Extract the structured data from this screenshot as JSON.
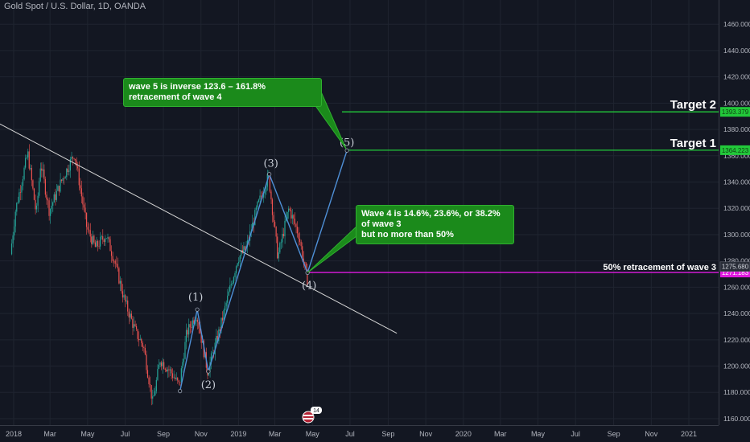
{
  "header": {
    "symbol_title": "Gold Spot / U.S. Dollar, 1D, OANDA"
  },
  "colors": {
    "background": "#131722",
    "grid": "#1f2430",
    "axis_text": "#b2b5be",
    "up_candle": "#26a69a",
    "down_candle": "#ef5350",
    "target_line": "#22c93a",
    "retracement_line": "#e01adf",
    "wave_line": "#4e8fd6",
    "trend_line": "#d6d6d6",
    "callout_bg": "#1b8a1b"
  },
  "callouts": {
    "wave5": "wave 5 is inverse 123.6 – 161.8% retracement of wave 4",
    "wave4": "Wave 4 is 14.6%, 23.6%, or 38.2% of wave 3\nbut no more than 50%"
  },
  "chart_data": {
    "type": "candlestick",
    "title": "Gold Spot / U.S. Dollar, 1D, OANDA",
    "ylim": [
      1145,
      1480
    ],
    "y_ticks": [
      1160,
      1180,
      1200,
      1220,
      1240,
      1260,
      1280,
      1300,
      1320,
      1340,
      1360,
      1380,
      1400,
      1420,
      1440,
      1460
    ],
    "x_tick_labels": [
      "2018",
      "Mar",
      "May",
      "Jul",
      "Sep",
      "Nov",
      "2019",
      "Mar",
      "May",
      "Jul",
      "Sep",
      "Nov",
      "2020",
      "Mar",
      "May",
      "Jul",
      "Sep",
      "Nov",
      "2021"
    ],
    "price_path": [
      [
        "2017-12-28",
        1285
      ],
      [
        "2018-01-05",
        1318
      ],
      [
        "2018-01-25",
        1362
      ],
      [
        "2018-02-08",
        1315
      ],
      [
        "2018-02-15",
        1355
      ],
      [
        "2018-03-01",
        1318
      ],
      [
        "2018-03-20",
        1340
      ],
      [
        "2018-04-11",
        1362
      ],
      [
        "2018-05-01",
        1305
      ],
      [
        "2018-05-15",
        1290
      ],
      [
        "2018-06-01",
        1300
      ],
      [
        "2018-06-15",
        1280
      ],
      [
        "2018-07-01",
        1250
      ],
      [
        "2018-07-20",
        1225
      ],
      [
        "2018-08-01",
        1215
      ],
      [
        "2018-08-16",
        1172
      ],
      [
        "2018-08-28",
        1205
      ],
      [
        "2018-09-15",
        1195
      ],
      [
        "2018-09-28",
        1185
      ],
      [
        "2018-10-10",
        1225
      ],
      [
        "2018-10-26",
        1240
      ],
      [
        "2018-11-13",
        1196
      ],
      [
        "2018-12-01",
        1225
      ],
      [
        "2018-12-20",
        1260
      ],
      [
        "2019-01-01",
        1282
      ],
      [
        "2019-01-15",
        1290
      ],
      [
        "2019-02-01",
        1320
      ],
      [
        "2019-02-20",
        1345
      ],
      [
        "2019-03-07",
        1283
      ],
      [
        "2019-03-25",
        1320
      ],
      [
        "2019-04-10",
        1300
      ],
      [
        "2019-04-23",
        1266
      ]
    ],
    "horizontal_levels": [
      {
        "label": "Target 2",
        "price": 1393.379,
        "price_label": "1393.379",
        "color": "#22c93a"
      },
      {
        "label": "Target 1",
        "price": 1364.223,
        "price_label": "1364.223",
        "color": "#22c93a"
      },
      {
        "label": "50% retracement of wave 3",
        "price": 1271.183,
        "price_label": "1271.183",
        "color": "#e01adf"
      }
    ],
    "current_price": {
      "price": 1275.68,
      "label": "1275.680"
    },
    "elliott_waves": [
      {
        "label": "(1)",
        "date": "2018-10-26",
        "price": 1243
      },
      {
        "label": "(2)",
        "date": "2018-11-13",
        "price": 1196
      },
      {
        "label": "(3)",
        "date": "2019-02-20",
        "price": 1346
      },
      {
        "label": "(4)",
        "date": "2019-04-23",
        "price": 1271
      },
      {
        "label": "(5)",
        "date": "2019-06-26",
        "price": 1364
      }
    ],
    "wave_path": [
      [
        "2018-09-28",
        1181
      ],
      [
        "2018-10-26",
        1243
      ],
      [
        "2018-11-13",
        1196
      ],
      [
        "2019-02-20",
        1346
      ],
      [
        "2019-04-23",
        1271
      ],
      [
        "2019-06-26",
        1364
      ]
    ],
    "trend_line": {
      "start": [
        "2017-11-20",
        1389
      ],
      "end": [
        "2019-09-15",
        1225
      ]
    },
    "event_badge": "14"
  }
}
